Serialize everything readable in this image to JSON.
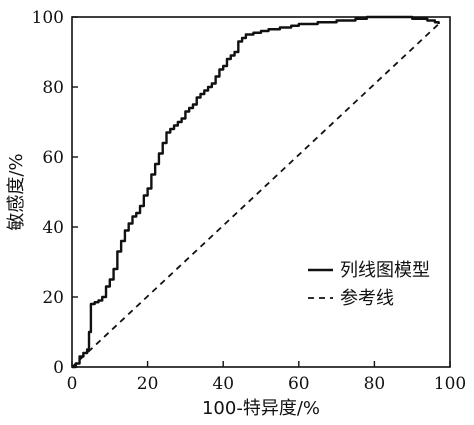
{
  "chart_data": {
    "type": "line",
    "xlabel": "100-特异度/%",
    "ylabel": "敏感度/%",
    "xlim": [
      0,
      100
    ],
    "ylim": [
      0,
      100
    ],
    "xticks": [
      "0",
      "20",
      "40",
      "60",
      "80",
      "100"
    ],
    "yticks": [
      "0",
      "20",
      "40",
      "60",
      "80",
      "100"
    ],
    "grid": false,
    "legend_position": "bottom-right",
    "series": [
      {
        "name": "列线图模型",
        "style": "solid",
        "color": "#111111",
        "x": [
          0,
          1,
          2,
          3,
          4,
          4.5,
          5,
          6,
          7,
          8,
          9,
          10,
          11,
          12,
          13,
          14,
          15,
          16,
          17,
          18,
          19,
          20,
          21,
          22,
          23,
          24,
          25,
          26,
          27,
          28,
          29,
          30,
          31,
          32,
          33,
          34,
          35,
          36,
          37,
          38,
          39,
          40,
          41,
          42,
          43,
          44,
          45,
          46,
          48,
          50,
          52,
          55,
          58,
          60,
          65,
          70,
          75,
          78,
          80,
          85,
          90,
          92,
          94,
          96,
          97
        ],
        "y": [
          0,
          1,
          3,
          4,
          5,
          10,
          18,
          18.5,
          19,
          20,
          23,
          25,
          28,
          33,
          36,
          39,
          41,
          43,
          44,
          46,
          49,
          51,
          55,
          58,
          61,
          64,
          67,
          68,
          69,
          70,
          71,
          73,
          74,
          75,
          77,
          78,
          79,
          80,
          81,
          83,
          85,
          86,
          88,
          89,
          90,
          93,
          94,
          95,
          95.5,
          96,
          96.5,
          97,
          97.5,
          98,
          98.5,
          99,
          99.5,
          100,
          100,
          100,
          99.5,
          99.5,
          99,
          98.5,
          98
        ]
      },
      {
        "name": "参考线",
        "style": "dashed",
        "color": "#111111",
        "x": [
          0,
          97
        ],
        "y": [
          0,
          98
        ]
      }
    ]
  }
}
